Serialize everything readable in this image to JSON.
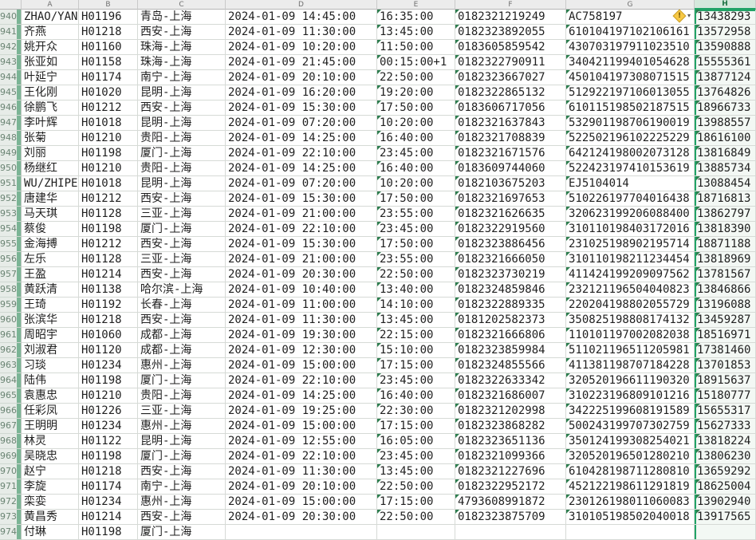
{
  "selection": {
    "selected_column": "H",
    "accent_color": "#21a366"
  },
  "column_headers": [
    "A",
    "B",
    "C",
    "D",
    "E",
    "F",
    "G",
    "H"
  ],
  "warning": {
    "symbol": "!",
    "dropdown_arrow": "▾"
  },
  "rows": [
    {
      "n": "940",
      "name": "ZHAO/YAN",
      "flight": "H01196",
      "route": "青岛-上海",
      "depart": "2024-01-09 14:45:00",
      "arrive": "16:35:00",
      "ticket": "0182321219249",
      "id": "AC758197",
      "phone": "13438293"
    },
    {
      "n": "941",
      "name": "齐燕",
      "flight": "H01218",
      "route": "西安-上海",
      "depart": "2024-01-09 11:30:00",
      "arrive": "13:45:00",
      "ticket": "0182323892055",
      "id": "610104197102106161",
      "phone": "13572958"
    },
    {
      "n": "942",
      "name": "姚开众",
      "flight": "H01160",
      "route": "珠海-上海",
      "depart": "2024-01-09 10:20:00",
      "arrive": "11:50:00",
      "ticket": "0183605859542",
      "id": "430703197911023510",
      "phone": "13590888"
    },
    {
      "n": "943",
      "name": "张亚如",
      "flight": "H01158",
      "route": "珠海-上海",
      "depart": "2024-01-09 21:45:00",
      "arrive": "00:15:00+1",
      "ticket": "0182322790911",
      "id": "340421199401054628",
      "phone": "15555361"
    },
    {
      "n": "944",
      "name": "叶延宁",
      "flight": "H01174",
      "route": "南宁-上海",
      "depart": "2024-01-09 20:10:00",
      "arrive": "22:50:00",
      "ticket": "0182323667027",
      "id": "450104197308071515",
      "phone": "13877124"
    },
    {
      "n": "945",
      "name": "王化刚",
      "flight": "H01020",
      "route": "昆明-上海",
      "depart": "2024-01-09 16:20:00",
      "arrive": "19:20:00",
      "ticket": "0182322865132",
      "id": "512922197106013055",
      "phone": "13764826"
    },
    {
      "n": "946",
      "name": "徐鹏飞",
      "flight": "H01212",
      "route": "西安-上海",
      "depart": "2024-01-09 15:30:00",
      "arrive": "17:50:00",
      "ticket": "0183606717056",
      "id": "610115198502187515",
      "phone": "18966733"
    },
    {
      "n": "947",
      "name": "李叶辉",
      "flight": "H01018",
      "route": "昆明-上海",
      "depart": "2024-01-09 07:20:00",
      "arrive": "10:20:00",
      "ticket": "0182321637843",
      "id": "532901198706190019",
      "phone": "13988557"
    },
    {
      "n": "948",
      "name": "张菊",
      "flight": "H01210",
      "route": "贵阳-上海",
      "depart": "2024-01-09 14:25:00",
      "arrive": "16:40:00",
      "ticket": "0182321708839",
      "id": "522502196102225229",
      "phone": "18616100"
    },
    {
      "n": "949",
      "name": "刘丽",
      "flight": "H01198",
      "route": "厦门-上海",
      "depart": "2024-01-09 22:10:00",
      "arrive": "23:45:00",
      "ticket": "0182321671576",
      "id": "642124198002073128",
      "phone": "13816849"
    },
    {
      "n": "950",
      "name": "杨继红",
      "flight": "H01210",
      "route": "贵阳-上海",
      "depart": "2024-01-09 14:25:00",
      "arrive": "16:40:00",
      "ticket": "0183609744060",
      "id": "522423197410153619",
      "phone": "13885734"
    },
    {
      "n": "951",
      "name": "WU/ZHIPEN",
      "flight": "H01018",
      "route": "昆明-上海",
      "depart": "2024-01-09 07:20:00",
      "arrive": "10:20:00",
      "ticket": "0182103675203",
      "id": "EJ5104014",
      "phone": "13088454"
    },
    {
      "n": "952",
      "name": "唐建华",
      "flight": "H01212",
      "route": "西安-上海",
      "depart": "2024-01-09 15:30:00",
      "arrive": "17:50:00",
      "ticket": "0182321697653",
      "id": "510226197704016438",
      "phone": "18716813"
    },
    {
      "n": "953",
      "name": "马天琪",
      "flight": "H01128",
      "route": "三亚-上海",
      "depart": "2024-01-09 21:00:00",
      "arrive": "23:55:00",
      "ticket": "0182321626635",
      "id": "320623199206088400",
      "phone": "13862797"
    },
    {
      "n": "954",
      "name": "蔡俊",
      "flight": "H01198",
      "route": "厦门-上海",
      "depart": "2024-01-09 22:10:00",
      "arrive": "23:45:00",
      "ticket": "0182322919560",
      "id": "310110198403172016",
      "phone": "13818390"
    },
    {
      "n": "955",
      "name": "金海搏",
      "flight": "H01212",
      "route": "西安-上海",
      "depart": "2024-01-09 15:30:00",
      "arrive": "17:50:00",
      "ticket": "0182323886456",
      "id": "231025198902195714",
      "phone": "18871188"
    },
    {
      "n": "956",
      "name": "左乐",
      "flight": "H01128",
      "route": "三亚-上海",
      "depart": "2024-01-09 21:00:00",
      "arrive": "23:55:00",
      "ticket": "0182321666050",
      "id": "310110198211234454",
      "phone": "13818969"
    },
    {
      "n": "957",
      "name": "王盈",
      "flight": "H01214",
      "route": "西安-上海",
      "depart": "2024-01-09 20:30:00",
      "arrive": "22:50:00",
      "ticket": "0182323730219",
      "id": "411424199209097562",
      "phone": "13781567"
    },
    {
      "n": "958",
      "name": "黄跃清",
      "flight": "H01138",
      "route": "哈尔滨-上海",
      "depart": "2024-01-09 10:40:00",
      "arrive": "13:40:00",
      "ticket": "0182324859846",
      "id": "232121196504040823",
      "phone": "13846866"
    },
    {
      "n": "959",
      "name": "王琦",
      "flight": "H01192",
      "route": "长春-上海",
      "depart": "2024-01-09 11:00:00",
      "arrive": "14:10:00",
      "ticket": "0182322889335",
      "id": "220204198802055729",
      "phone": "13196088"
    },
    {
      "n": "960",
      "name": "张滨华",
      "flight": "H01218",
      "route": "西安-上海",
      "depart": "2024-01-09 11:30:00",
      "arrive": "13:45:00",
      "ticket": "0181202582373",
      "id": "350825198808174132",
      "phone": "13459287"
    },
    {
      "n": "961",
      "name": "周昭宇",
      "flight": "H01060",
      "route": "成都-上海",
      "depart": "2024-01-09 19:30:00",
      "arrive": "22:15:00",
      "ticket": "0182321666806",
      "id": "110101197002082038",
      "phone": "18516971"
    },
    {
      "n": "962",
      "name": "刘淑君",
      "flight": "H01120",
      "route": "成都-上海",
      "depart": "2024-01-09 12:30:00",
      "arrive": "15:10:00",
      "ticket": "0182323859984",
      "id": "511021196511205981",
      "phone": "17381460"
    },
    {
      "n": "963",
      "name": "习琰",
      "flight": "H01234",
      "route": "惠州-上海",
      "depart": "2024-01-09 15:00:00",
      "arrive": "17:15:00",
      "ticket": "0182324855566",
      "id": "411381198707184228",
      "phone": "13701853"
    },
    {
      "n": "964",
      "name": "陆伟",
      "flight": "H01198",
      "route": "厦门-上海",
      "depart": "2024-01-09 22:10:00",
      "arrive": "23:45:00",
      "ticket": "0182322633342",
      "id": "320520196611190320",
      "phone": "18915637"
    },
    {
      "n": "965",
      "name": "袁惠忠",
      "flight": "H01210",
      "route": "贵阳-上海",
      "depart": "2024-01-09 14:25:00",
      "arrive": "16:40:00",
      "ticket": "0182321686007",
      "id": "310223196809101216",
      "phone": "15180777"
    },
    {
      "n": "966",
      "name": "任彩凤",
      "flight": "H01226",
      "route": "三亚-上海",
      "depart": "2024-01-09 19:25:00",
      "arrive": "22:30:00",
      "ticket": "0182321202998",
      "id": "342225199608191589",
      "phone": "15655317"
    },
    {
      "n": "967",
      "name": "王明明",
      "flight": "H01234",
      "route": "惠州-上海",
      "depart": "2024-01-09 15:00:00",
      "arrive": "17:15:00",
      "ticket": "0182323868282",
      "id": "500243199707302759",
      "phone": "15627333"
    },
    {
      "n": "968",
      "name": "林灵",
      "flight": "H01122",
      "route": "昆明-上海",
      "depart": "2024-01-09 12:55:00",
      "arrive": "16:05:00",
      "ticket": "0182323651136",
      "id": "350124199308254021",
      "phone": "13818224"
    },
    {
      "n": "969",
      "name": "吴晓忠",
      "flight": "H01198",
      "route": "厦门-上海",
      "depart": "2024-01-09 22:10:00",
      "arrive": "23:45:00",
      "ticket": "0182321099366",
      "id": "320520196501280210",
      "phone": "13806230"
    },
    {
      "n": "970",
      "name": "赵宁",
      "flight": "H01218",
      "route": "西安-上海",
      "depart": "2024-01-09 11:30:00",
      "arrive": "13:45:00",
      "ticket": "0182321227696",
      "id": "610428198711280810",
      "phone": "13659292"
    },
    {
      "n": "971",
      "name": "李旋",
      "flight": "H01174",
      "route": "南宁-上海",
      "depart": "2024-01-09 20:10:00",
      "arrive": "22:50:00",
      "ticket": "0182322952172",
      "id": "452122198611291819",
      "phone": "18625004"
    },
    {
      "n": "972",
      "name": "栾娈",
      "flight": "H01234",
      "route": "惠州-上海",
      "depart": "2024-01-09 15:00:00",
      "arrive": "17:15:00",
      "ticket": "4793608991872",
      "id": "230126198011060083",
      "phone": "13902940"
    },
    {
      "n": "973",
      "name": "黄昌秀",
      "flight": "H01214",
      "route": "西安-上海",
      "depart": "2024-01-09 20:30:00",
      "arrive": "22:50:00",
      "ticket": "0182323875709",
      "id": "310105198502040018",
      "phone": "13917565"
    },
    {
      "n": "974",
      "name": "付琳",
      "flight": "H01198",
      "route": "厦门-上海",
      "depart": "",
      "arrive": "",
      "ticket": "",
      "id": "",
      "phone": ""
    }
  ]
}
